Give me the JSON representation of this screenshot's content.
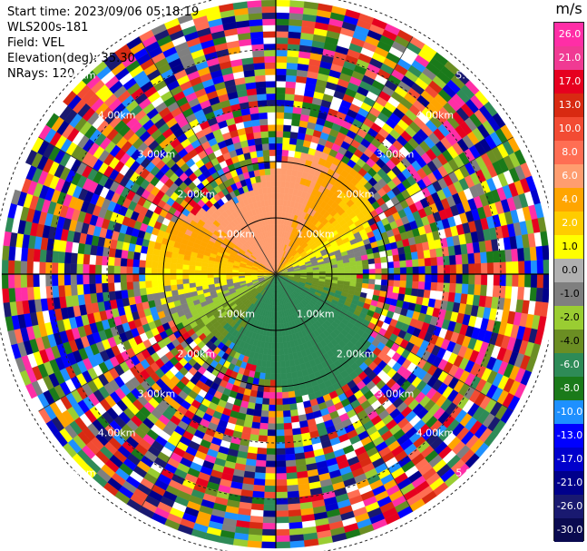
{
  "info": {
    "start_time": "Start time: 2023/09/06 05:18:19",
    "instrument": "WLS200s-181",
    "field": "Field: VEL",
    "elevation": "Elevation(deg): 35.30",
    "nrays": "NRays: 120"
  },
  "colorbar": {
    "unit": "m/s",
    "labels": [
      "26.0",
      "21.0",
      "17.0",
      "13.0",
      "10.0",
      "8.0",
      "6.0",
      "4.0",
      "2.0",
      "1.0",
      "0.0",
      "-1.0",
      "-2.0",
      "-4.0",
      "-6.0",
      "-8.0",
      "-10.0",
      "-13.0",
      "-17.0",
      "-21.0",
      "-26.0",
      "-30.0"
    ],
    "colors": [
      "#ff2ea6",
      "#f03a93",
      "#e6001f",
      "#d82a12",
      "#f24b33",
      "#ff6e53",
      "#ff9d6f",
      "#ffa500",
      "#ffcc00",
      "#ffff00",
      "#b0b0b0",
      "#7f7f7f",
      "#9acd32",
      "#6b8e23",
      "#2e8b57",
      "#1a7a1a",
      "#1e90ff",
      "#0000ff",
      "#0000cc",
      "#00008b",
      "#191970",
      "#0a0a50"
    ]
  },
  "rings": {
    "labels": [
      "1.00km",
      "2.00km",
      "3.00km",
      "4.00km",
      "5.00km"
    ]
  }
}
